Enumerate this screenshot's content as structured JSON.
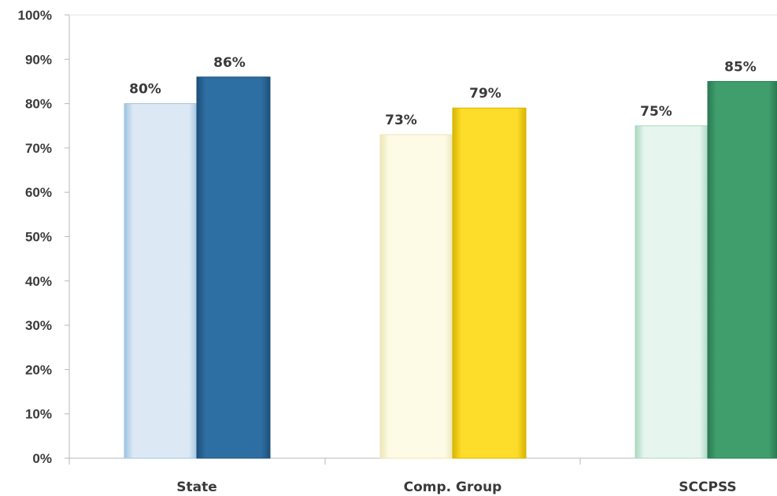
{
  "chart_data": {
    "type": "bar",
    "categories": [
      "State",
      "Comp. Group",
      "SCCPSS"
    ],
    "bars": [
      {
        "category": "State",
        "value": 80,
        "label": "80%",
        "color": "#dce9f5",
        "edge": "#9ec3e0"
      },
      {
        "category": "State",
        "value": 86,
        "label": "86%",
        "color": "#2e6fa3",
        "edge": "#1d4f7a"
      },
      {
        "category": "Comp. Group",
        "value": 73,
        "label": "73%",
        "color": "#fdfbe6",
        "edge": "#ece6b8"
      },
      {
        "category": "Comp. Group",
        "value": 79,
        "label": "79%",
        "color": "#fddd2a",
        "edge": "#d8b400"
      },
      {
        "category": "SCCPSS",
        "value": 75,
        "label": "75%",
        "color": "#e6f5ee",
        "edge": "#a8d8bf"
      },
      {
        "category": "SCCPSS",
        "value": 85,
        "label": "85%",
        "color": "#3f9e6c",
        "edge": "#2a7a51"
      }
    ],
    "yticks": [
      "0%",
      "10%",
      "20%",
      "30%",
      "40%",
      "50%",
      "60%",
      "70%",
      "80%",
      "90%",
      "100%"
    ],
    "ylim": [
      0,
      100
    ],
    "grid": false,
    "axis_color": "#b8b8b8"
  }
}
